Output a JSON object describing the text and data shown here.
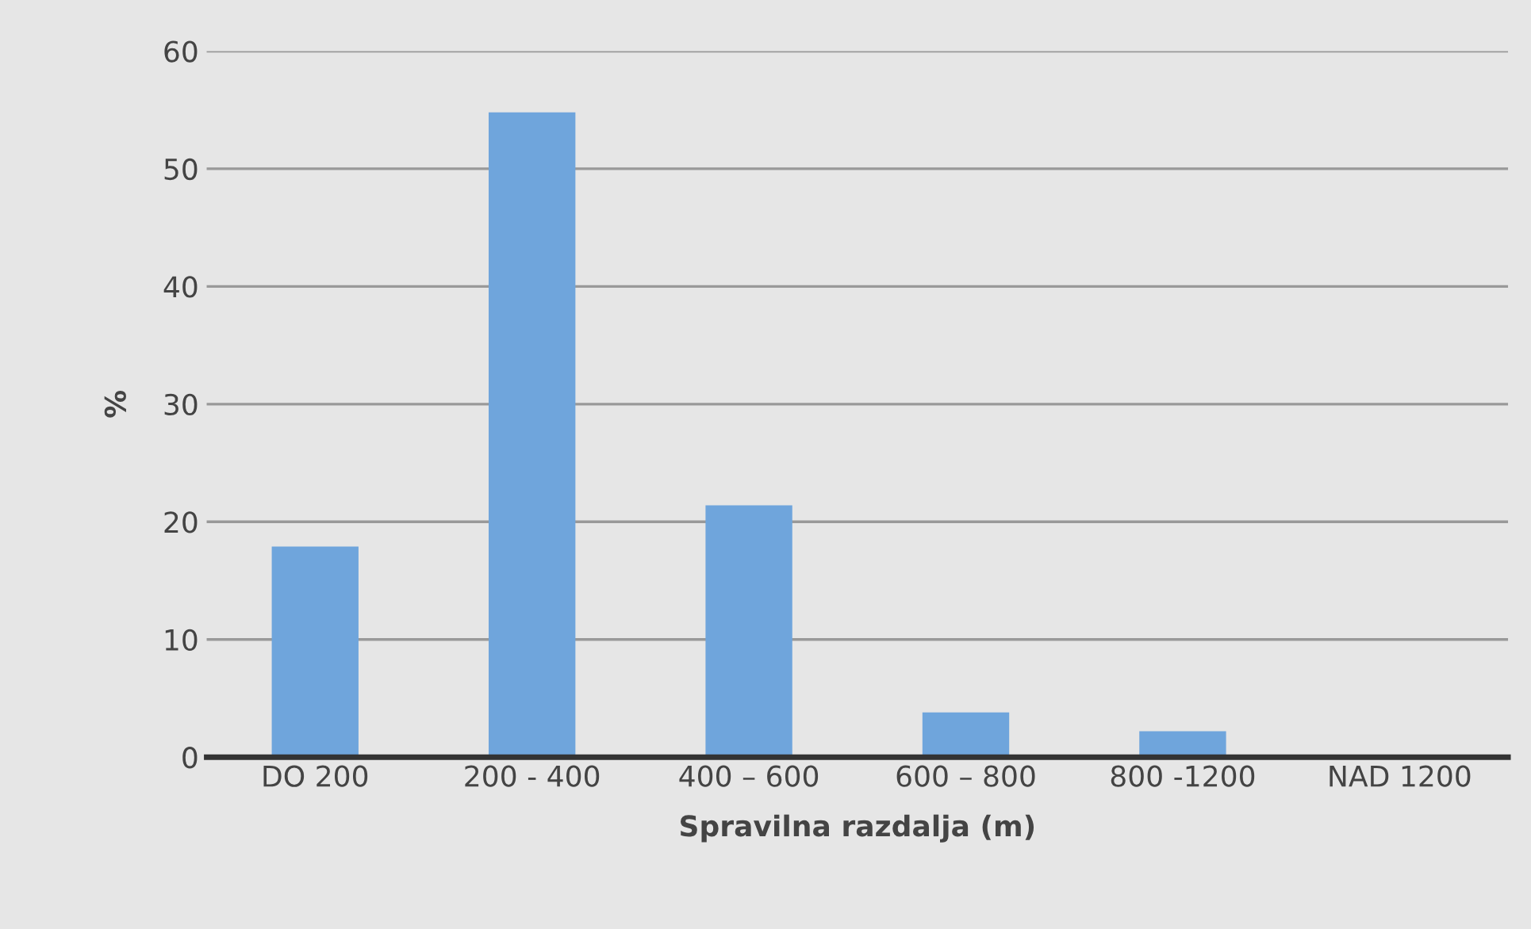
{
  "chart_data": {
    "type": "bar",
    "xlabel": "Spravilna razdalja (m)",
    "ylabel": "%",
    "categories": [
      "DO 200",
      "200 - 400",
      "400 – 600",
      "600 – 800",
      "800 -1200",
      "NAD 1200"
    ],
    "values": [
      17.9,
      54.8,
      21.4,
      3.8,
      2.2,
      0
    ],
    "color": "#6fa5dc",
    "ylim": [
      0,
      60
    ],
    "yticks": [
      0,
      10,
      20,
      30,
      40,
      50,
      60
    ],
    "grid": "y"
  }
}
